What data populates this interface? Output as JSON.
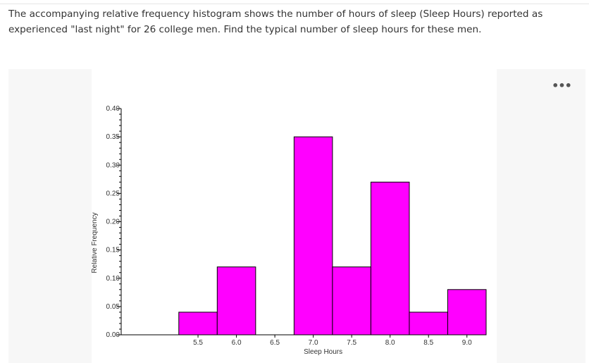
{
  "question": {
    "text": "The accompanying relative frequency histogram shows the number of hours of sleep (Sleep Hours) reported as experienced \"last night\" for 26 college men. Find the typical number of sleep hours for these men."
  },
  "menu": {
    "icon": "more-dots-icon",
    "label": "•••"
  },
  "chart_data": {
    "type": "bar",
    "xlabel": "Sleep Hours",
    "ylabel": "Relative Frequency",
    "bar_color": "#ff00ff",
    "bin_edges": [
      5.25,
      5.75,
      6.25,
      6.75,
      7.25,
      7.75,
      8.25,
      8.75,
      9.25
    ],
    "values": [
      0.04,
      0.12,
      0.0,
      0.35,
      0.12,
      0.27,
      0.04,
      0.08
    ],
    "xlim": [
      4.5,
      9.25
    ],
    "ylim": [
      0,
      0.4
    ],
    "x_ticks": [
      "5.5",
      "6.0",
      "6.5",
      "7.0",
      "7.5",
      "8.0",
      "8.5",
      "9.0"
    ],
    "y_ticks": [
      "0.00",
      "0.05",
      "0.10",
      "0.15",
      "0.20",
      "0.25",
      "0.30",
      "0.35",
      "0.40"
    ],
    "grid": false
  }
}
